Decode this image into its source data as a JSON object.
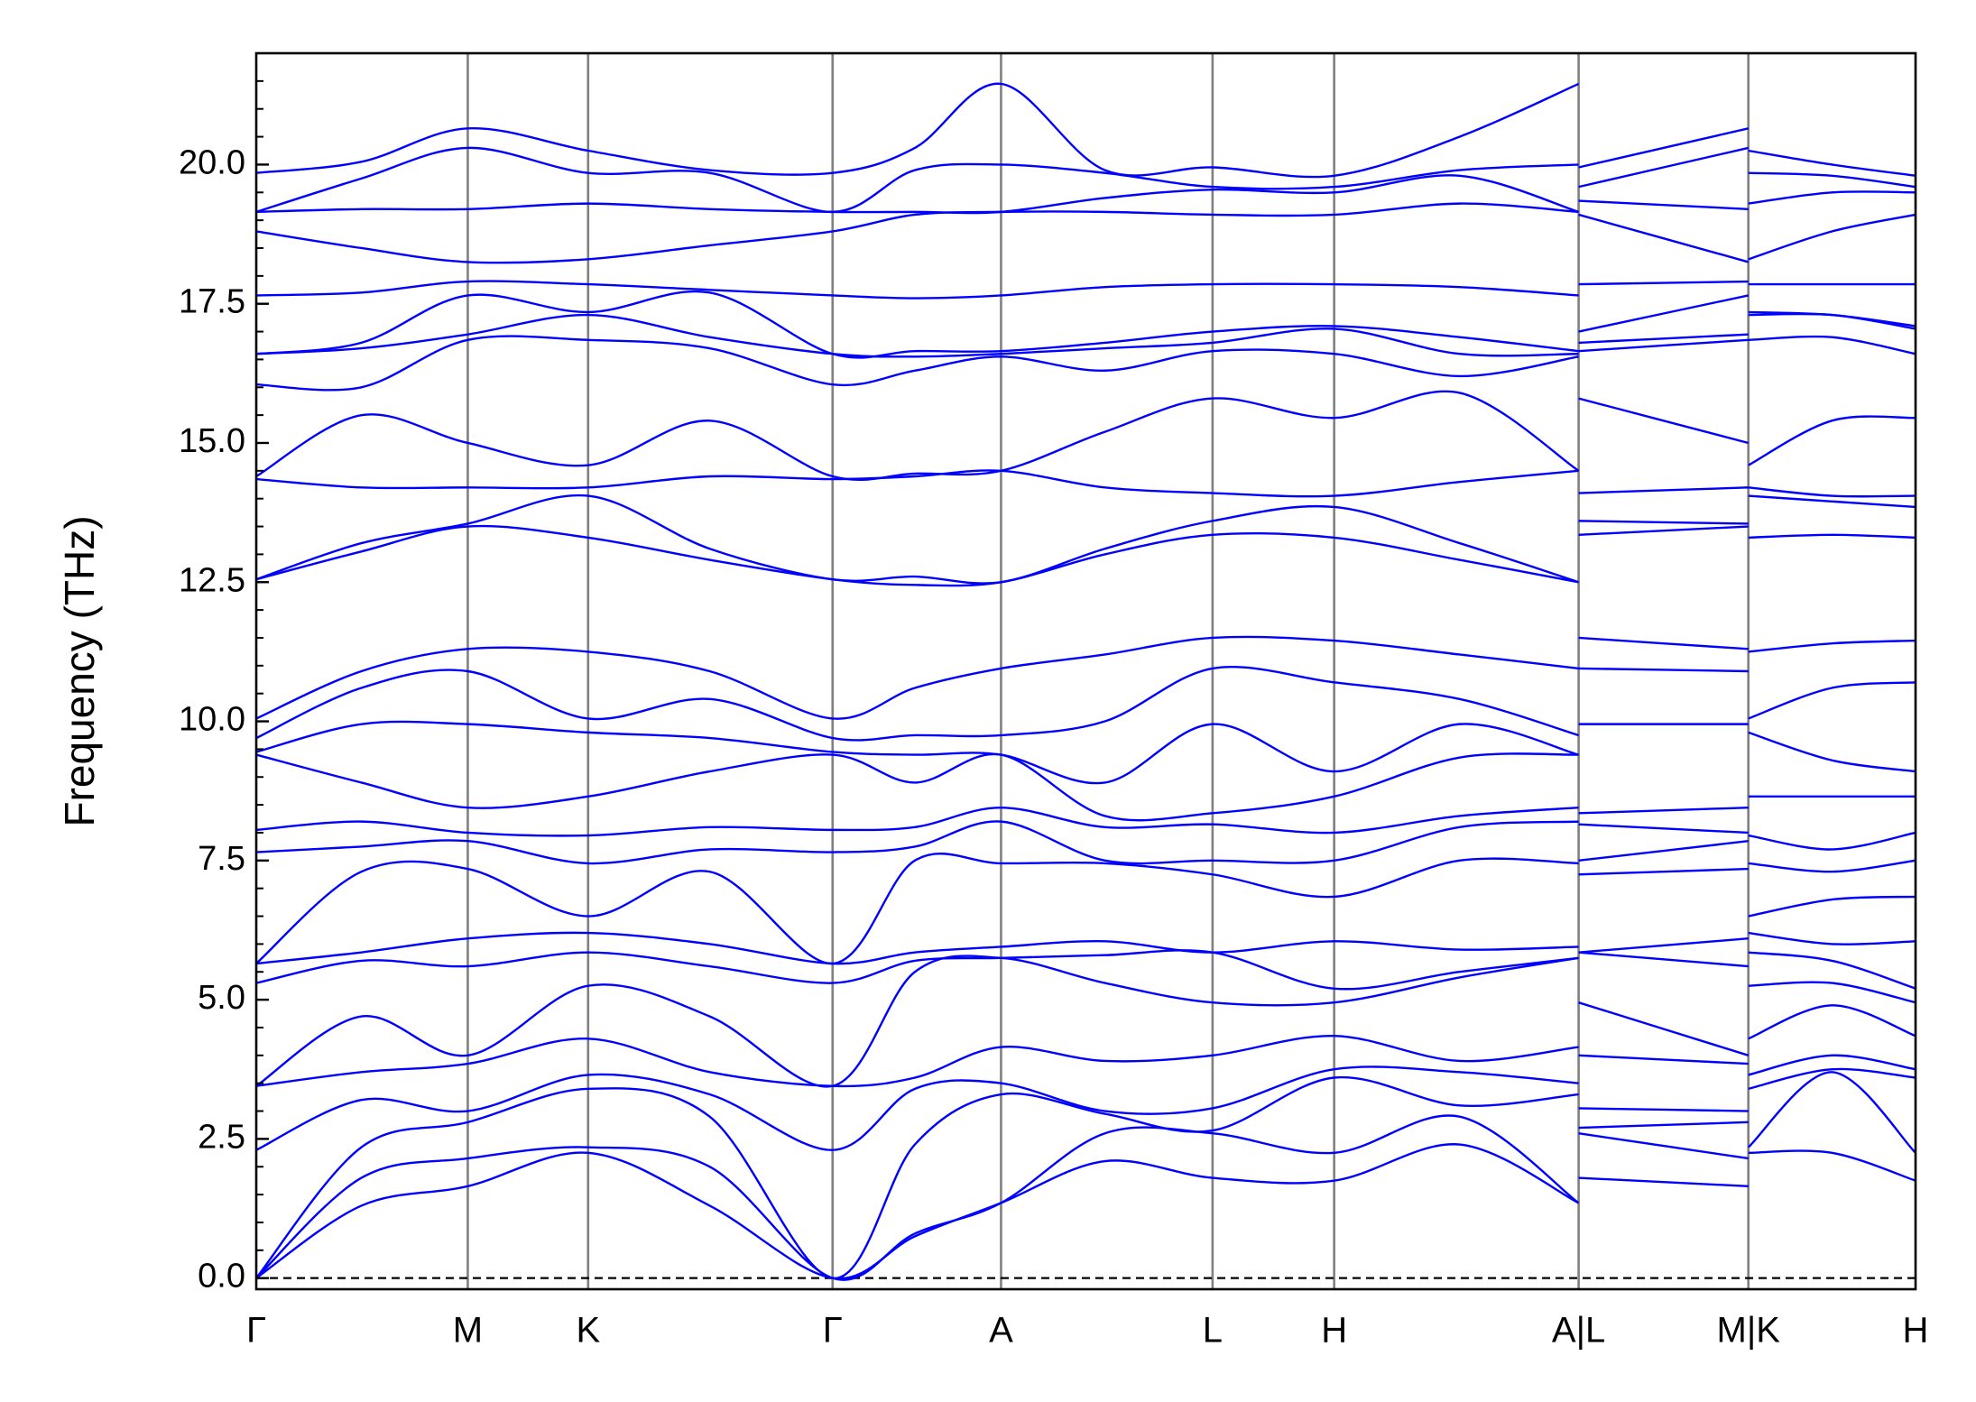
{
  "chart_data": {
    "type": "line",
    "y_label": "Frequency (THz)",
    "x": [
      0,
      0.83,
      1.67,
      2.62,
      3.58,
      4.55,
      5.2,
      5.88,
      6.7,
      7.55,
      8.51,
      9.5,
      10.44,
      10.44,
      10.44,
      11.78,
      11.78,
      11.78,
      12.44,
      13.1
    ],
    "xlim": [
      0,
      13.1
    ],
    "xticks": [
      {
        "value": 0,
        "label": "Γ"
      },
      {
        "value": 1.67,
        "label": "M"
      },
      {
        "value": 2.62,
        "label": "K"
      },
      {
        "value": 4.55,
        "label": "Γ"
      },
      {
        "value": 5.88,
        "label": "A"
      },
      {
        "value": 7.55,
        "label": "L"
      },
      {
        "value": 8.51,
        "label": "H"
      },
      {
        "value": 10.44,
        "label": "A|L"
      },
      {
        "value": 11.78,
        "label": "M|K"
      },
      {
        "value": 13.1,
        "label": "H"
      }
    ],
    "ylim": [
      -0.2,
      22.0
    ],
    "yticks": [
      {
        "value": 0,
        "label": "0.0"
      },
      {
        "value": 2.5,
        "label": "2.5"
      },
      {
        "value": 5,
        "label": "5.0"
      },
      {
        "value": 7.5,
        "label": "7.5"
      },
      {
        "value": 10,
        "label": "10.0"
      },
      {
        "value": 12.5,
        "label": "12.5"
      },
      {
        "value": 15,
        "label": "15.0"
      },
      {
        "value": 17.5,
        "label": "17.5"
      },
      {
        "value": 20,
        "label": "20.0"
      }
    ],
    "yminorticks": [
      0.5,
      1,
      1.5,
      2,
      3,
      3.5,
      4,
      4.5,
      5.5,
      6,
      6.5,
      7,
      8,
      8.5,
      9,
      9.5,
      10.5,
      11,
      11.5,
      12,
      13,
      13.5,
      14,
      14.5,
      15.5,
      16,
      16.5,
      17,
      18,
      18.5,
      19,
      19.5,
      20.5,
      21,
      21.5
    ],
    "xgrid": true,
    "grid_color": "#808080",
    "hline": 0,
    "series": [
      {
        "color": "#0000ff",
        "values": [
          0,
          1.3,
          1.65,
          2.25,
          1.3,
          0,
          0.75,
          1.35,
          2.1,
          1.8,
          1.75,
          2.4,
          1.35,
          null,
          1.8,
          1.65,
          null,
          2.25,
          2.25,
          1.75
        ]
      },
      {
        "color": "#0000ff",
        "values": [
          0,
          1.8,
          2.15,
          2.35,
          2.0,
          0,
          0.8,
          1.35,
          2.6,
          2.6,
          2.25,
          2.9,
          1.35,
          null,
          2.6,
          2.15,
          null,
          2.35,
          3.7,
          2.25
        ]
      },
      {
        "color": "#0000ff",
        "values": [
          0,
          2.35,
          2.8,
          3.4,
          2.9,
          0,
          2.4,
          3.3,
          2.95,
          2.65,
          3.6,
          3.1,
          3.3,
          null,
          2.7,
          2.8,
          null,
          3.4,
          3.75,
          3.6
        ]
      },
      {
        "color": "#0000ff",
        "values": [
          2.3,
          3.2,
          3.0,
          3.65,
          3.3,
          2.3,
          3.4,
          3.5,
          3.0,
          3.05,
          3.75,
          3.7,
          3.5,
          null,
          3.05,
          3.0,
          null,
          3.65,
          4.0,
          3.75
        ]
      },
      {
        "color": "#0000ff",
        "values": [
          3.45,
          3.7,
          3.85,
          4.3,
          3.7,
          3.45,
          3.6,
          4.15,
          3.9,
          4.0,
          4.35,
          3.9,
          4.15,
          null,
          4.0,
          3.85,
          null,
          4.3,
          4.9,
          4.35
        ]
      },
      {
        "color": "#0000ff",
        "values": [
          3.45,
          4.7,
          4.0,
          5.25,
          4.7,
          3.45,
          5.5,
          5.75,
          5.3,
          4.95,
          4.95,
          5.4,
          5.75,
          null,
          4.95,
          4.0,
          null,
          5.25,
          5.3,
          4.95
        ]
      },
      {
        "color": "#0000ff",
        "values": [
          5.3,
          5.7,
          5.6,
          5.85,
          5.6,
          5.3,
          5.7,
          5.75,
          5.8,
          5.85,
          5.2,
          5.5,
          5.75,
          null,
          5.85,
          5.6,
          null,
          5.85,
          5.7,
          5.2
        ]
      },
      {
        "color": "#0000ff",
        "values": [
          5.65,
          5.85,
          6.1,
          6.2,
          6.0,
          5.65,
          5.85,
          5.95,
          6.05,
          5.85,
          6.05,
          5.9,
          5.95,
          null,
          5.85,
          6.1,
          null,
          6.2,
          6.0,
          6.05
        ]
      },
      {
        "color": "#0000ff",
        "values": [
          5.65,
          7.3,
          7.35,
          6.5,
          7.3,
          5.65,
          7.5,
          7.45,
          7.45,
          7.25,
          6.85,
          7.5,
          7.45,
          null,
          7.25,
          7.35,
          null,
          6.5,
          6.8,
          6.85
        ]
      },
      {
        "color": "#0000ff",
        "values": [
          7.65,
          7.75,
          7.85,
          7.45,
          7.7,
          7.65,
          7.75,
          8.2,
          7.5,
          7.5,
          7.5,
          8.1,
          8.2,
          null,
          7.5,
          7.85,
          null,
          7.45,
          7.3,
          7.5
        ]
      },
      {
        "color": "#0000ff",
        "values": [
          8.05,
          8.2,
          8.0,
          7.95,
          8.1,
          8.05,
          8.1,
          8.45,
          8.1,
          8.15,
          8.0,
          8.3,
          8.45,
          null,
          8.15,
          8.0,
          null,
          7.95,
          7.7,
          8.0
        ]
      },
      {
        "color": "#0000ff",
        "values": [
          9.4,
          8.9,
          8.45,
          8.65,
          9.1,
          9.4,
          8.9,
          9.4,
          8.3,
          8.35,
          8.65,
          9.35,
          9.4,
          null,
          8.35,
          8.45,
          null,
          8.65,
          8.65,
          8.65
        ]
      },
      {
        "color": "#0000ff",
        "values": [
          9.45,
          9.95,
          9.95,
          9.8,
          9.7,
          9.45,
          9.4,
          9.4,
          8.9,
          9.95,
          9.1,
          9.95,
          9.4,
          null,
          9.95,
          9.95,
          null,
          9.8,
          9.3,
          9.1
        ]
      },
      {
        "color": "#0000ff",
        "values": [
          9.7,
          10.6,
          10.9,
          10.05,
          10.4,
          9.7,
          9.75,
          9.75,
          10.0,
          10.95,
          10.7,
          10.4,
          9.75,
          null,
          10.95,
          10.9,
          null,
          10.05,
          10.6,
          10.7
        ]
      },
      {
        "color": "#0000ff",
        "values": [
          10.05,
          10.9,
          11.3,
          11.25,
          10.9,
          10.05,
          10.6,
          10.95,
          11.2,
          11.5,
          11.45,
          11.2,
          10.95,
          null,
          11.5,
          11.3,
          null,
          11.25,
          11.4,
          11.45
        ]
      },
      {
        "color": "#0000ff",
        "values": [
          12.55,
          13.05,
          13.5,
          13.3,
          12.9,
          12.55,
          12.45,
          12.5,
          13.0,
          13.35,
          13.3,
          12.9,
          12.5,
          null,
          13.35,
          13.5,
          null,
          13.3,
          13.35,
          13.3
        ]
      },
      {
        "color": "#0000ff",
        "values": [
          12.55,
          13.2,
          13.55,
          14.05,
          13.1,
          12.55,
          12.6,
          12.5,
          13.1,
          13.6,
          13.85,
          13.2,
          12.5,
          null,
          13.6,
          13.55,
          null,
          14.05,
          13.95,
          13.85
        ]
      },
      {
        "color": "#0000ff",
        "values": [
          14.35,
          14.2,
          14.2,
          14.2,
          14.4,
          14.35,
          14.4,
          14.5,
          14.2,
          14.1,
          14.05,
          14.3,
          14.5,
          null,
          14.1,
          14.2,
          null,
          14.2,
          14.05,
          14.05
        ]
      },
      {
        "color": "#0000ff",
        "values": [
          14.4,
          15.5,
          15.0,
          14.6,
          15.4,
          14.4,
          14.45,
          14.5,
          15.2,
          15.8,
          15.45,
          15.9,
          14.5,
          null,
          15.8,
          15.0,
          null,
          14.6,
          15.4,
          15.45
        ]
      },
      {
        "color": "#0000ff",
        "values": [
          16.05,
          16.0,
          16.85,
          16.85,
          16.7,
          16.05,
          16.3,
          16.55,
          16.3,
          16.65,
          16.6,
          16.2,
          16.55,
          null,
          16.65,
          16.85,
          null,
          16.85,
          16.9,
          16.6
        ]
      },
      {
        "color": "#0000ff",
        "values": [
          16.6,
          16.7,
          16.95,
          17.3,
          16.9,
          16.6,
          16.55,
          16.6,
          16.7,
          16.8,
          17.05,
          16.6,
          16.6,
          null,
          16.8,
          16.95,
          null,
          17.3,
          17.3,
          17.05
        ]
      },
      {
        "color": "#0000ff",
        "values": [
          16.6,
          16.8,
          17.65,
          17.35,
          17.7,
          16.6,
          16.65,
          16.65,
          16.8,
          17.0,
          17.1,
          16.9,
          16.65,
          null,
          17.0,
          17.65,
          null,
          17.35,
          17.3,
          17.1
        ]
      },
      {
        "color": "#0000ff",
        "values": [
          17.65,
          17.7,
          17.9,
          17.85,
          17.75,
          17.65,
          17.6,
          17.65,
          17.8,
          17.85,
          17.85,
          17.8,
          17.65,
          null,
          17.85,
          17.9,
          null,
          17.85,
          17.85,
          17.85
        ]
      },
      {
        "color": "#0000ff",
        "values": [
          18.8,
          18.5,
          18.25,
          18.3,
          18.55,
          18.8,
          19.1,
          19.15,
          19.15,
          19.1,
          19.1,
          19.3,
          19.15,
          null,
          19.1,
          18.25,
          null,
          18.3,
          18.8,
          19.1
        ]
      },
      {
        "color": "#0000ff",
        "values": [
          19.15,
          19.2,
          19.2,
          19.3,
          19.2,
          19.15,
          19.15,
          19.15,
          19.4,
          19.55,
          19.5,
          19.8,
          19.15,
          null,
          19.35,
          19.2,
          null,
          19.3,
          19.5,
          19.5
        ]
      },
      {
        "color": "#0000ff",
        "values": [
          19.15,
          19.75,
          20.3,
          19.85,
          19.85,
          19.15,
          19.9,
          20.0,
          19.85,
          19.6,
          19.6,
          19.9,
          20.0,
          null,
          19.6,
          20.3,
          null,
          19.85,
          19.8,
          19.6
        ]
      },
      {
        "color": "#0000ff",
        "values": [
          19.85,
          20.05,
          20.65,
          20.25,
          19.9,
          19.85,
          20.3,
          21.45,
          19.9,
          19.95,
          19.8,
          20.5,
          21.45,
          null,
          19.95,
          20.65,
          null,
          20.25,
          20.0,
          19.8
        ]
      }
    ]
  }
}
